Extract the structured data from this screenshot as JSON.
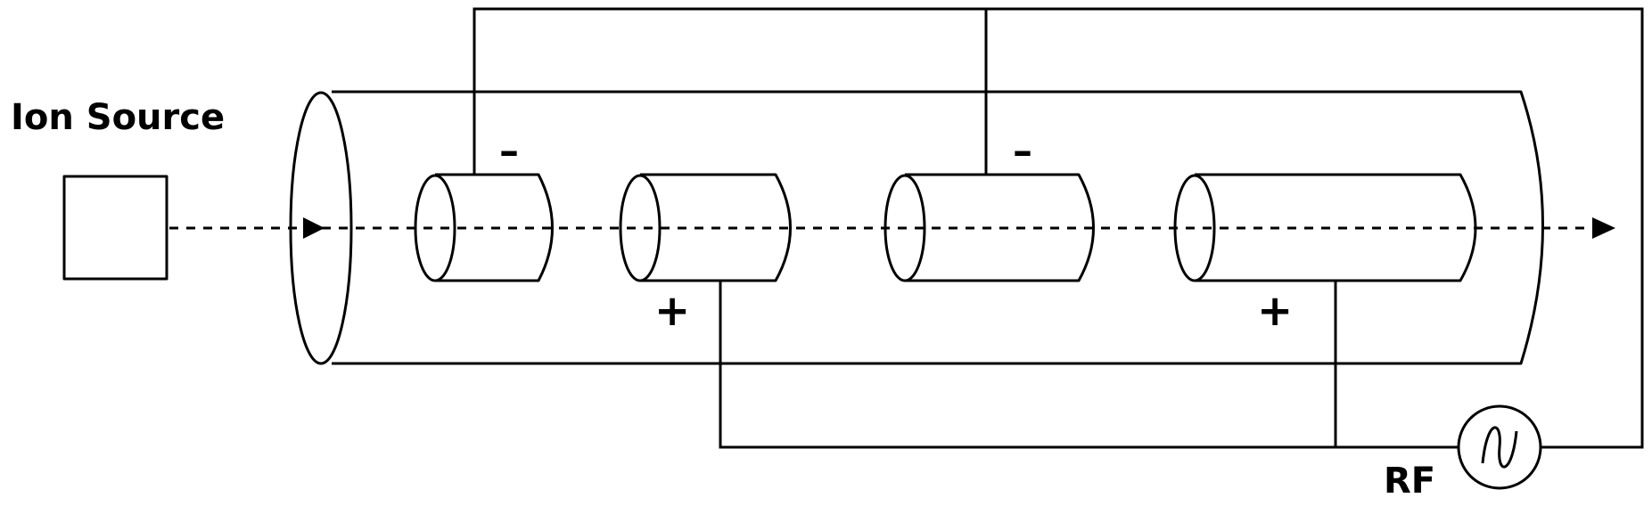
{
  "labels": {
    "ion_source": "Ion Source",
    "rf": "RF",
    "minus": "–",
    "plus": "+"
  },
  "colors": {
    "stroke": "#000000",
    "background": "#ffffff"
  },
  "components": {
    "ion_source": "box",
    "drift_tubes": 4,
    "rf_generator": "sine-wave-source"
  }
}
